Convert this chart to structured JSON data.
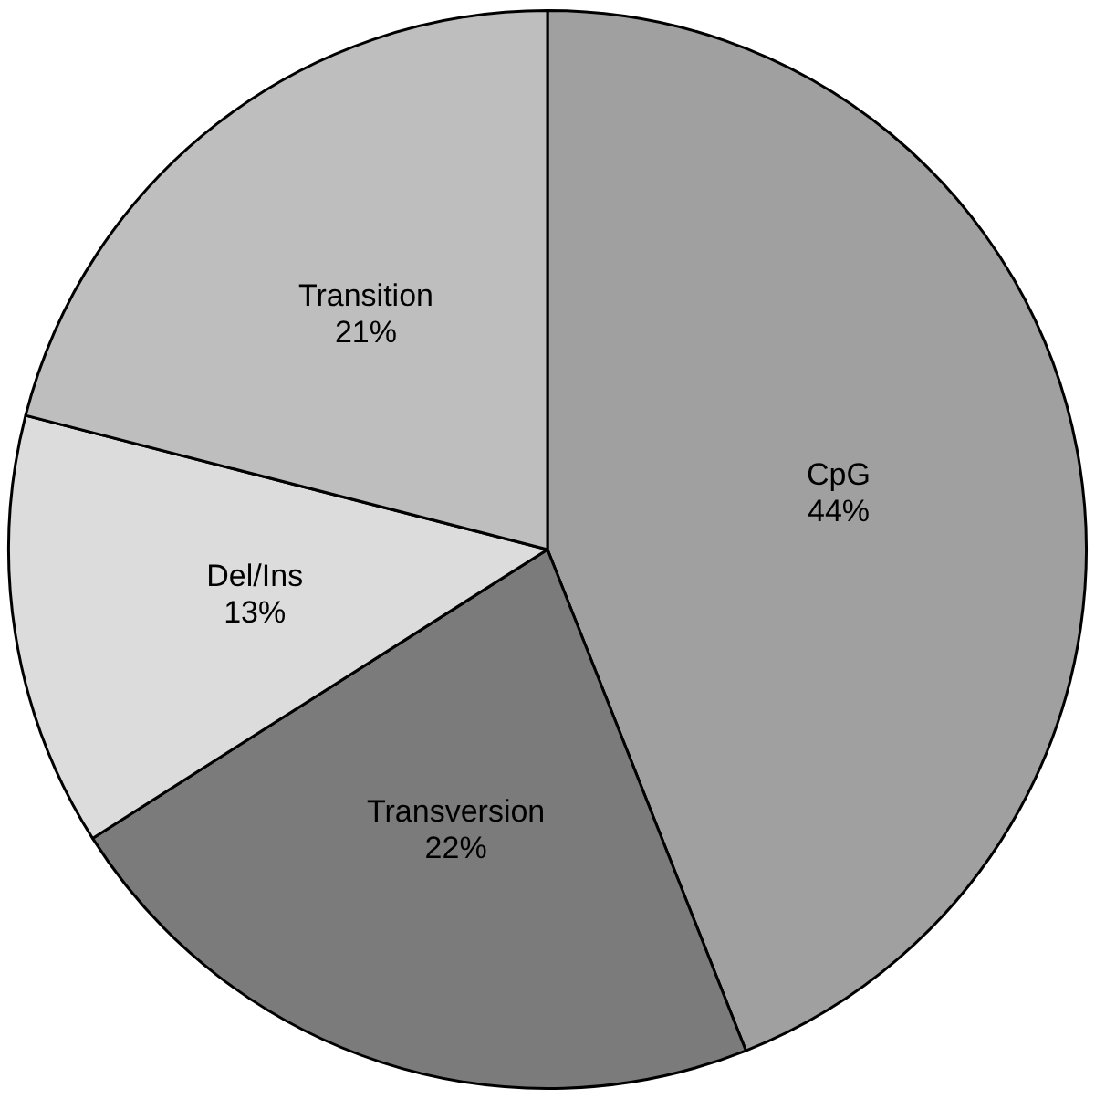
{
  "chart_data": {
    "type": "pie",
    "categories": [
      "CpG",
      "Transversion",
      "Del/Ins",
      "Transition"
    ],
    "values": [
      44,
      22,
      13,
      21
    ],
    "value_labels": [
      "44%",
      "22%",
      "13%",
      "21%"
    ],
    "colors": [
      "#a0a0a0",
      "#7b7b7b",
      "#dcdcdc",
      "#bebebe"
    ],
    "legend": false
  }
}
